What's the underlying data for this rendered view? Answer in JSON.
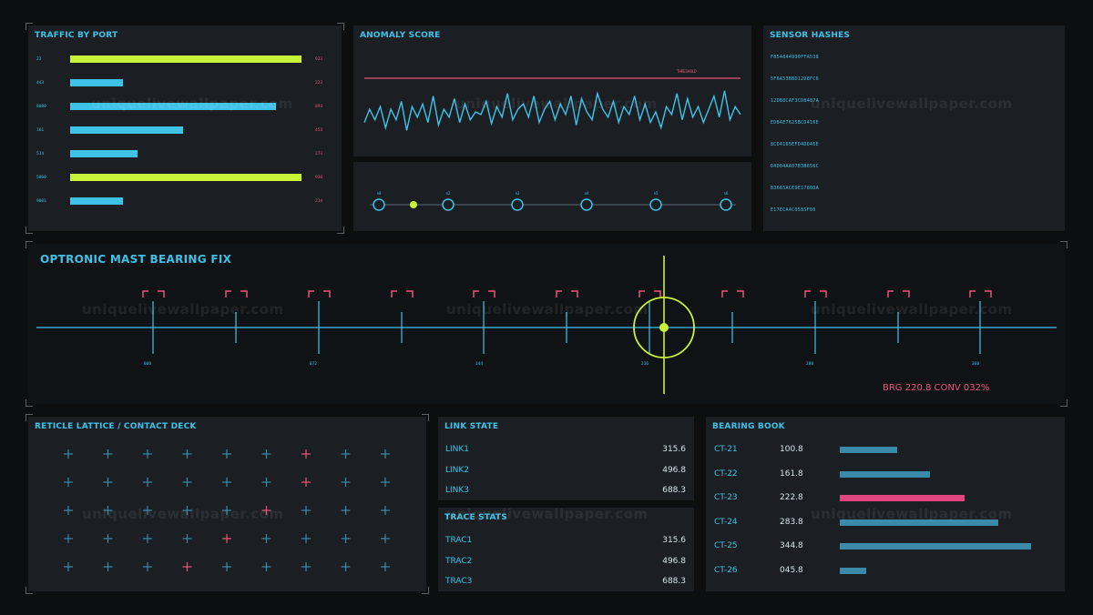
{
  "traffic": {
    "title": "TRAFFIC BY PORT",
    "rows": [
      {
        "port": "22",
        "value": "923",
        "fraction": 1.0,
        "color": "#c8f23a"
      },
      {
        "port": "443",
        "value": "223",
        "fraction": 0.23,
        "color": "#3fc2e8"
      },
      {
        "port": "8080",
        "value": "893",
        "fraction": 0.89,
        "color": "#3fc2e8"
      },
      {
        "port": "161",
        "value": "453",
        "fraction": 0.49,
        "color": "#3fc2e8"
      },
      {
        "port": "514",
        "value": "273",
        "fraction": 0.29,
        "color": "#3fc2e8"
      },
      {
        "port": "5060",
        "value": "930",
        "fraction": 1.0,
        "color": "#c8f23a"
      },
      {
        "port": "9001",
        "value": "214",
        "fraction": 0.23,
        "color": "#3fc2e8"
      }
    ]
  },
  "anomaly": {
    "title": "ANOMALY SCORE",
    "threshold_label": "THRESHOLD",
    "series": [
      0.3,
      0.55,
      0.35,
      0.6,
      0.2,
      0.55,
      0.35,
      0.7,
      0.15,
      0.6,
      0.4,
      0.65,
      0.3,
      0.8,
      0.25,
      0.55,
      0.4,
      0.75,
      0.3,
      0.65,
      0.35,
      0.5,
      0.45,
      0.7,
      0.28,
      0.6,
      0.4,
      0.85,
      0.35,
      0.55,
      0.65,
      0.4,
      0.8,
      0.3,
      0.55,
      0.7,
      0.35,
      0.65,
      0.45,
      0.8,
      0.25,
      0.75,
      0.5,
      0.35,
      0.85,
      0.55,
      0.4,
      0.7,
      0.3,
      0.6,
      0.45,
      0.8,
      0.35,
      0.65,
      0.3,
      0.5,
      0.2,
      0.6,
      0.45,
      0.85,
      0.35,
      0.75,
      0.4,
      0.6,
      0.3,
      0.55,
      0.8,
      0.4,
      0.9,
      0.35,
      0.6,
      0.45
    ],
    "threshold": 1.0
  },
  "timeline": {
    "nodes": [
      "n0",
      "n1",
      "n2",
      "n3",
      "n4",
      "n5",
      "n6"
    ],
    "active_index": 1,
    "accent": "#c8f23a"
  },
  "hashes": {
    "title": "SENSOR HASHES",
    "items": [
      "F854844990FFA538",
      "5F6A53BBD12D8FC6",
      "12DB8CAF3CD8487A",
      "EDB4E7625BCD416E",
      "8CD4165EFD4DD46E",
      "D4D04AA07B3B656C",
      "B3665ACE9E1780DA",
      "E17ECA4C058SF80"
    ]
  },
  "mast": {
    "title": "OPTRONIC MAST BEARING FIX",
    "scale_labels": [
      "000",
      "072",
      "144",
      "216",
      "288",
      "360"
    ],
    "readout": "BRG 220.8  CONV 032%",
    "reticle_color": "#c8f23a",
    "marker_color": "#e8557a"
  },
  "lattice": {
    "title": "RETICLE LATTICE / CONTACT DECK",
    "cols": 9,
    "rows": 5,
    "highlights": [
      [
        0,
        6
      ],
      [
        1,
        6
      ],
      [
        2,
        5
      ],
      [
        3,
        4
      ],
      [
        4,
        3
      ]
    ]
  },
  "link_state": {
    "title": "LINK STATE",
    "rows": [
      {
        "label": "LINK1",
        "value": "315.6"
      },
      {
        "label": "LINK2",
        "value": "496.8"
      },
      {
        "label": "LINK3",
        "value": "688.3"
      }
    ]
  },
  "trace_stats": {
    "title": "TRACE STATS",
    "rows": [
      {
        "label": "TRAC1",
        "value": "315.6"
      },
      {
        "label": "TRAC2",
        "value": "496.8"
      },
      {
        "label": "TRAC3",
        "value": "688.3"
      }
    ]
  },
  "bearing_book": {
    "title": "BEARING BOOK",
    "rows": [
      {
        "id": "CT-21",
        "value": "100.8",
        "fraction": 0.3,
        "color": "#3a8aa8"
      },
      {
        "id": "CT-22",
        "value": "161.8",
        "fraction": 0.47,
        "color": "#3a8aa8"
      },
      {
        "id": "CT-23",
        "value": "222.8",
        "fraction": 0.65,
        "color": "#e0457f"
      },
      {
        "id": "CT-24",
        "value": "283.8",
        "fraction": 0.83,
        "color": "#3a8aa8"
      },
      {
        "id": "CT-25",
        "value": "344.8",
        "fraction": 1.0,
        "color": "#3a8aa8"
      },
      {
        "id": "CT-26",
        "value": "045.8",
        "fraction": 0.14,
        "color": "#3a8aa8"
      }
    ]
  },
  "watermark": "uniquelivewallpaper.com"
}
